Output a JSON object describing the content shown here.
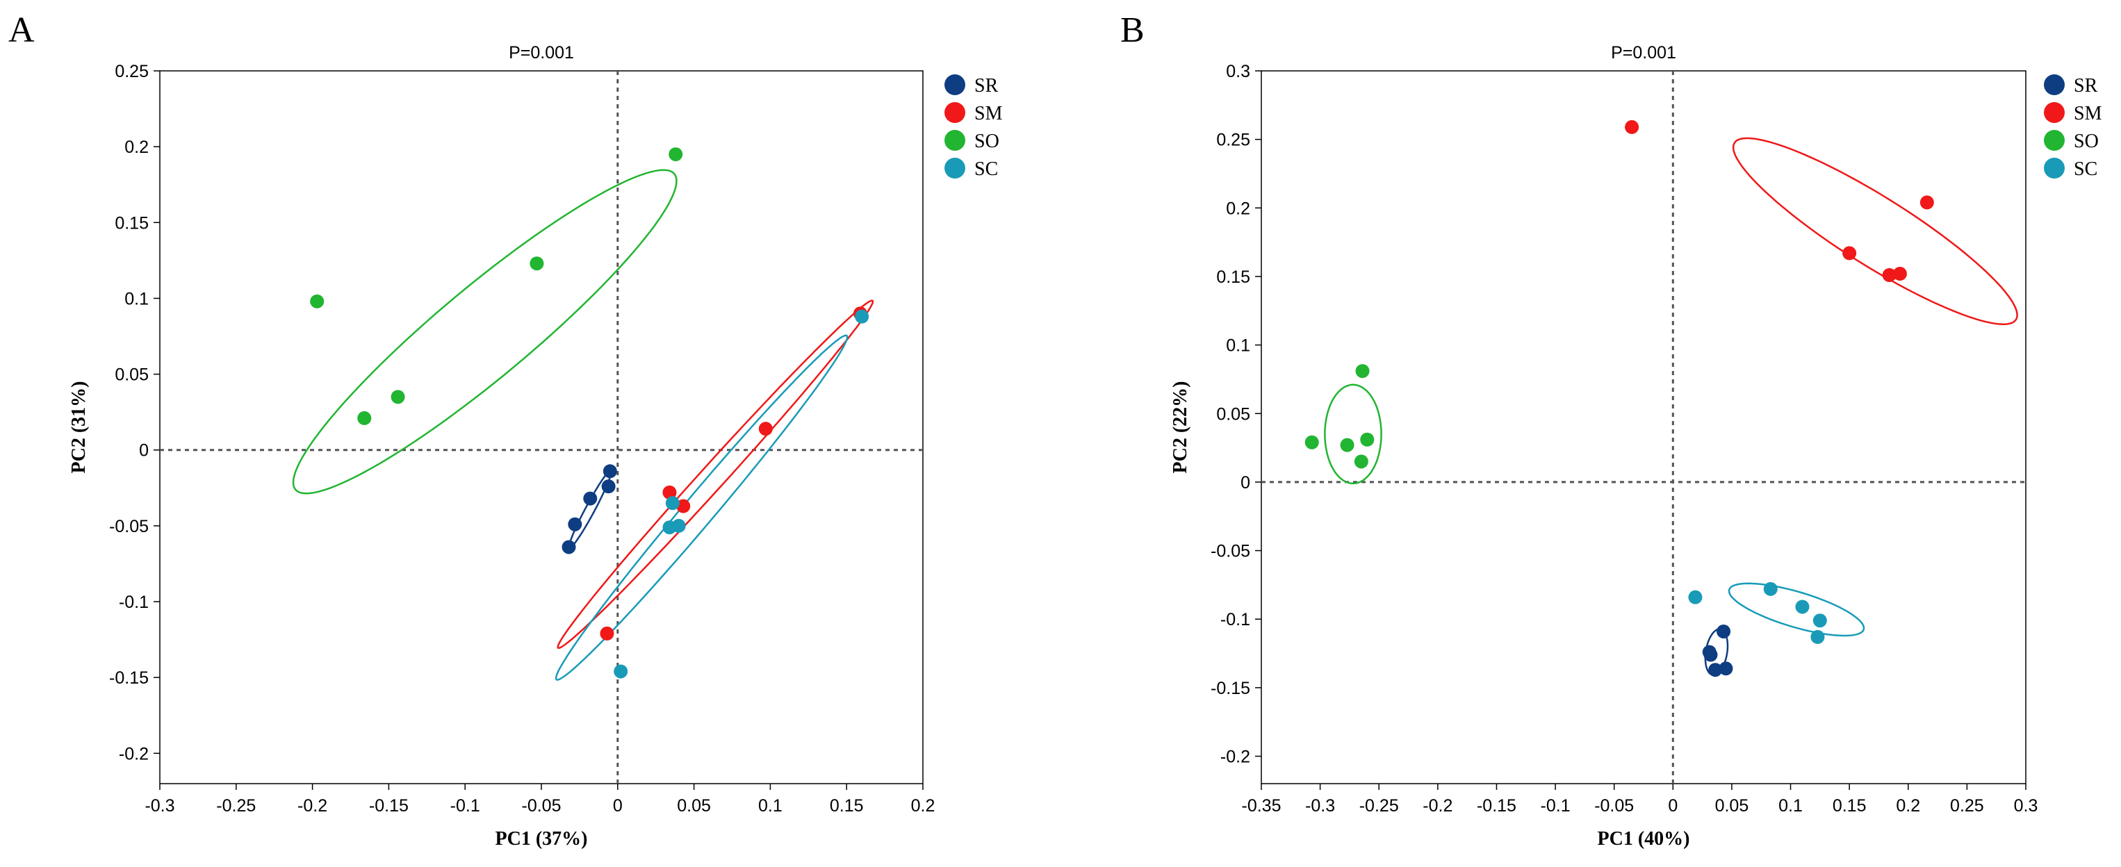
{
  "chart_data": [
    {
      "type": "scatter",
      "panel": "A",
      "title": "P=0.001",
      "xlabel": "PC1 (37%)",
      "ylabel": "PC2 (31%)",
      "xlim": [
        -0.3,
        0.2
      ],
      "ylim": [
        -0.22,
        0.25
      ],
      "xticks": [
        -0.3,
        -0.25,
        -0.2,
        -0.15,
        -0.1,
        -0.05,
        0,
        0.05,
        0.1,
        0.15,
        0.2
      ],
      "xtick_labels": [
        "-0.3",
        "-0.25",
        "-0.2",
        "-0.15",
        "-0.1",
        "-0.05",
        "0",
        "0.05",
        "0.1",
        "0.15",
        "0.2"
      ],
      "yticks": [
        -0.2,
        -0.15,
        -0.1,
        -0.05,
        0,
        0.05,
        0.1,
        0.15,
        0.2,
        0.25
      ],
      "ytick_labels": [
        "-0.2",
        "-0.15",
        "-0.1",
        "-0.05",
        "0",
        "0.05",
        "0.1",
        "0.15",
        "0.2",
        "0.25"
      ],
      "grid": false,
      "reference_lines": {
        "x": 0,
        "y": 0,
        "style": "dashed"
      },
      "legend_position": "top-right",
      "series": [
        {
          "name": "SR",
          "color": "#0f3d82",
          "points": [
            [
              -0.032,
              -0.064
            ],
            [
              -0.028,
              -0.049
            ],
            [
              -0.018,
              -0.032
            ],
            [
              -0.006,
              -0.024
            ],
            [
              -0.005,
              -0.014
            ]
          ],
          "ellipse": {
            "center": [
              -0.018,
              -0.039
            ],
            "semi_axes": [
              0.029,
              0.003
            ],
            "angle_deg": 62
          }
        },
        {
          "name": "SM",
          "color": "#f01818",
          "points": [
            [
              0.159,
              0.09
            ],
            [
              0.097,
              0.014
            ],
            [
              0.034,
              -0.028
            ],
            [
              0.043,
              -0.037
            ],
            [
              -0.007,
              -0.121
            ]
          ],
          "ellipse": {
            "center": [
              0.064,
              -0.016
            ],
            "semi_axes": [
              0.154,
              0.008
            ],
            "angle_deg": 48
          }
        },
        {
          "name": "SO",
          "color": "#21b531",
          "points": [
            [
              0.038,
              0.195
            ],
            [
              -0.053,
              0.123
            ],
            [
              -0.197,
              0.098
            ],
            [
              -0.144,
              0.035
            ],
            [
              -0.166,
              0.021
            ]
          ],
          "ellipse": {
            "center": [
              -0.087,
              0.078
            ],
            "semi_axes": [
              0.162,
              0.03
            ],
            "angle_deg": 40
          }
        },
        {
          "name": "SC",
          "color": "#199bb8",
          "points": [
            [
              0.16,
              0.088
            ],
            [
              0.036,
              -0.035
            ],
            [
              0.034,
              -0.051
            ],
            [
              0.04,
              -0.05
            ],
            [
              0.002,
              -0.146
            ]
          ],
          "ellipse": {
            "center": [
              0.055,
              -0.038
            ],
            "semi_axes": [
              0.148,
              0.01
            ],
            "angle_deg": 50
          }
        }
      ]
    },
    {
      "type": "scatter",
      "panel": "B",
      "title": "P=0.001",
      "xlabel": "PC1 (40%)",
      "ylabel": "PC2 (22%)",
      "xlim": [
        -0.35,
        0.3
      ],
      "ylim": [
        -0.22,
        0.3
      ],
      "xticks": [
        -0.35,
        -0.3,
        -0.25,
        -0.2,
        -0.15,
        -0.1,
        -0.05,
        0,
        0.05,
        0.1,
        0.15,
        0.2,
        0.25,
        0.3
      ],
      "xtick_labels": [
        "-0.35",
        "-0.3",
        "-0.25",
        "-0.2",
        "-0.15",
        "-0.1",
        "-0.05",
        "0",
        "0.05",
        "0.1",
        "0.15",
        "0.2",
        "0.25",
        "0.3"
      ],
      "yticks": [
        -0.2,
        -0.15,
        -0.1,
        -0.05,
        0,
        0.05,
        0.1,
        0.15,
        0.2,
        0.25,
        0.3
      ],
      "ytick_labels": [
        "-0.2",
        "-0.15",
        "-0.1",
        "-0.05",
        "0",
        "0.05",
        "0.1",
        "0.15",
        "0.2",
        "0.25",
        "0.3"
      ],
      "grid": false,
      "reference_lines": {
        "x": 0,
        "y": 0,
        "style": "dashed"
      },
      "legend_position": "top-right",
      "series": [
        {
          "name": "SR",
          "color": "#0f3d82",
          "points": [
            [
              0.043,
              -0.109
            ],
            [
              0.032,
              -0.126
            ],
            [
              0.036,
              -0.137
            ],
            [
              0.045,
              -0.136
            ],
            [
              0.031,
              -0.124
            ]
          ],
          "ellipse": {
            "center": [
              0.037,
              -0.124
            ],
            "semi_axes": [
              0.017,
              0.009
            ],
            "angle_deg": 78
          }
        },
        {
          "name": "SM",
          "color": "#f01818",
          "points": [
            [
              -0.035,
              0.259
            ],
            [
              0.15,
              0.167
            ],
            [
              0.184,
              0.151
            ],
            [
              0.193,
              0.152
            ],
            [
              0.216,
              0.204
            ]
          ],
          "ellipse": {
            "center": [
              0.172,
              0.183
            ],
            "semi_axes": [
              0.136,
              0.026
            ],
            "angle_deg": -28
          }
        },
        {
          "name": "SO",
          "color": "#21b531",
          "points": [
            [
              -0.264,
              0.081
            ],
            [
              -0.307,
              0.029
            ],
            [
              -0.277,
              0.027
            ],
            [
              -0.26,
              0.031
            ],
            [
              -0.265,
              0.015
            ]
          ],
          "ellipse": {
            "center": [
              -0.272,
              0.035
            ],
            "semi_axes": [
              0.036,
              0.024
            ],
            "angle_deg": 90
          }
        },
        {
          "name": "SC",
          "color": "#199bb8",
          "points": [
            [
              0.019,
              -0.084
            ],
            [
              0.083,
              -0.078
            ],
            [
              0.11,
              -0.091
            ],
            [
              0.125,
              -0.101
            ],
            [
              0.123,
              -0.113
            ]
          ],
          "ellipse": {
            "center": [
              0.105,
              -0.093
            ],
            "semi_axes": [
              0.059,
              0.013
            ],
            "angle_deg": -14
          }
        }
      ]
    }
  ]
}
